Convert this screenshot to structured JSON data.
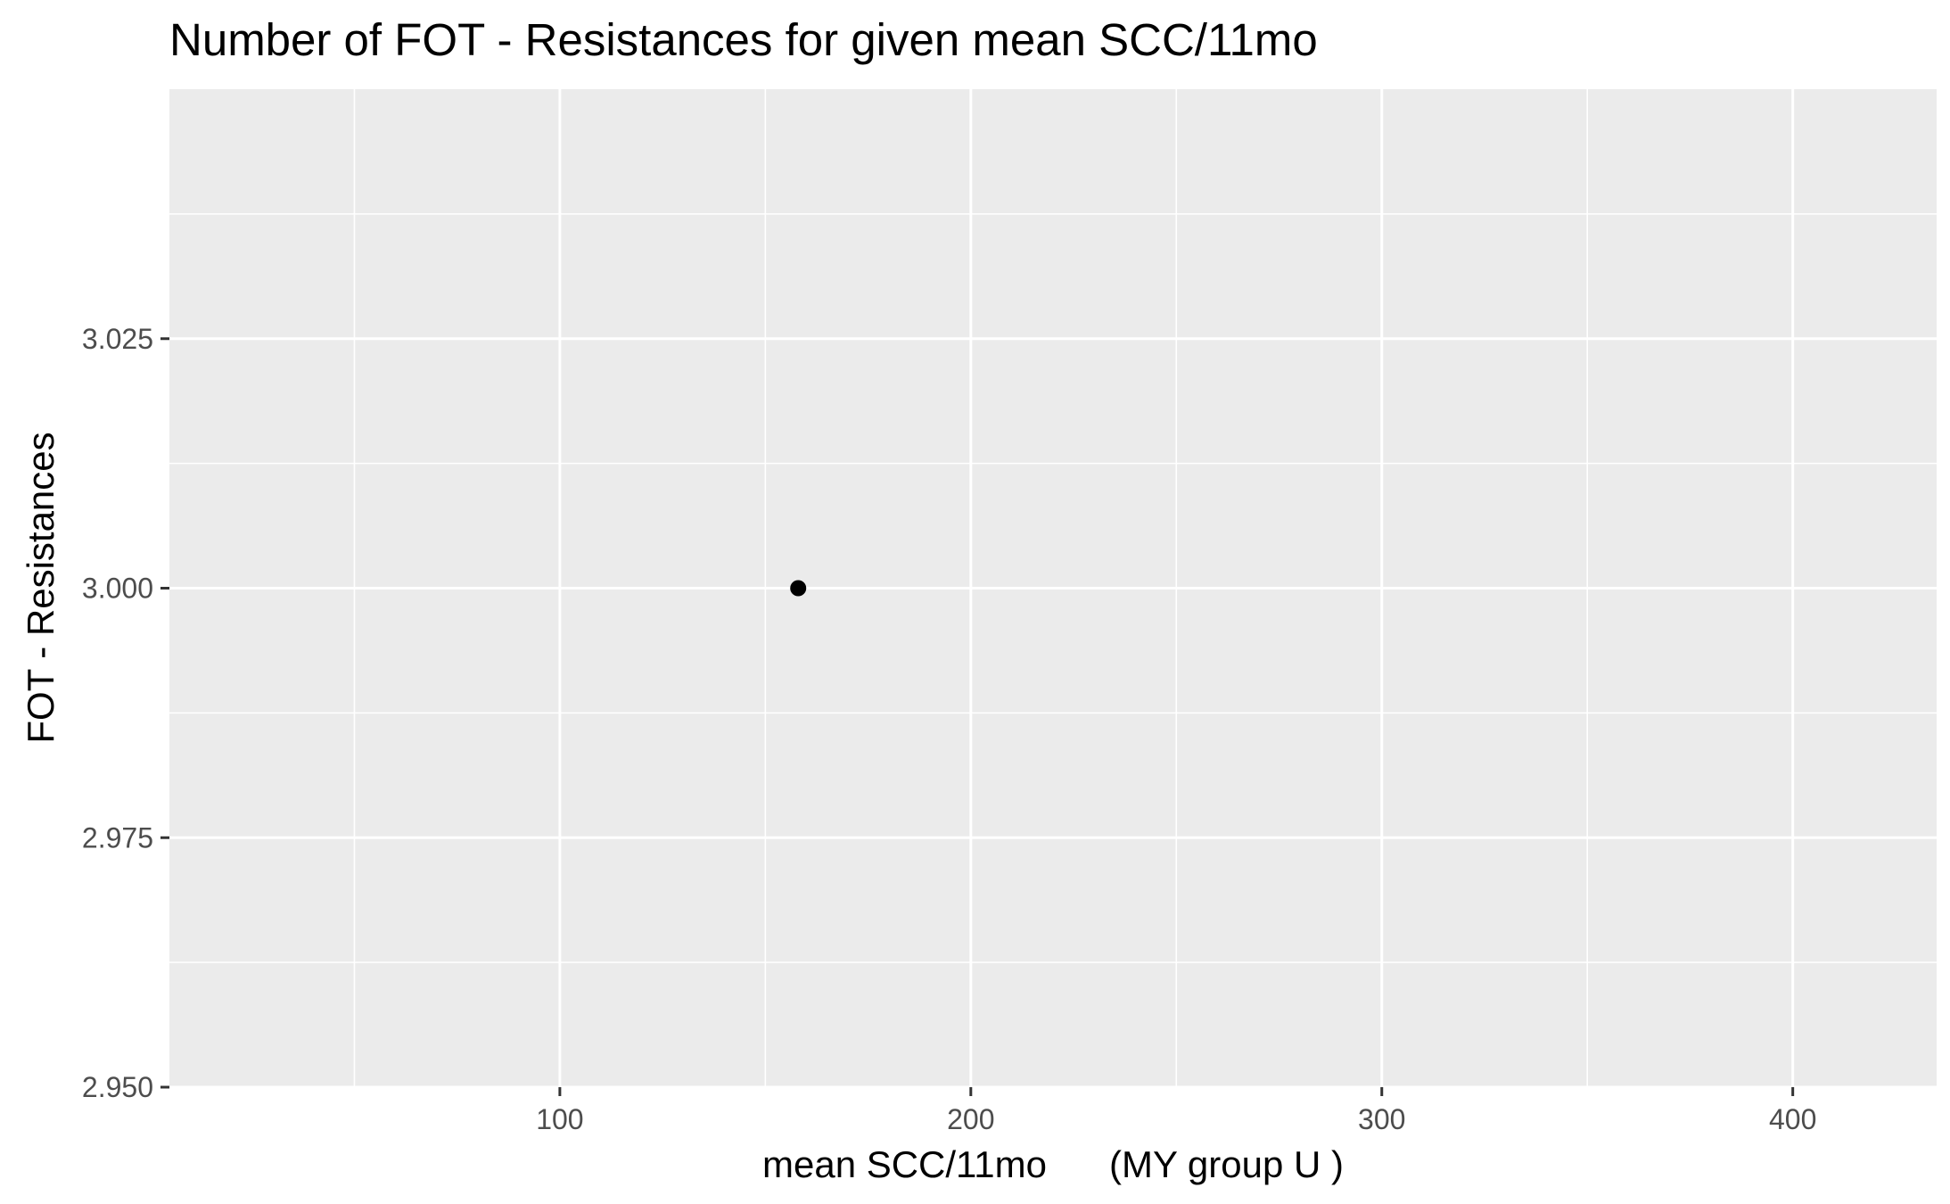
{
  "chart_data": {
    "type": "scatter",
    "title": "Number of FOT - Resistances for given mean SCC/11mo",
    "xlabel": "mean SCC/11mo      (MY group U )",
    "ylabel": "FOT - Resistances",
    "xlim": [
      5,
      435
    ],
    "ylim": [
      2.95,
      3.05
    ],
    "x_ticks": [
      100,
      200,
      300,
      400
    ],
    "x_tick_labels": [
      "100",
      "200",
      "300",
      "400"
    ],
    "x_minor_ticks": [
      50,
      150,
      250,
      350
    ],
    "y_ticks": [
      2.95,
      2.975,
      3.0,
      3.025
    ],
    "y_tick_labels": [
      "2.950",
      "2.975",
      "3.000",
      "3.025"
    ],
    "y_minor_ticks": [
      2.9625,
      2.9875,
      3.0125,
      3.0375
    ],
    "points": [
      {
        "x": 158,
        "y": 3.0
      }
    ],
    "grid": true,
    "colors": {
      "panel": "#ebebeb",
      "grid": "#ffffff",
      "point": "#000000",
      "tick": "#333333"
    }
  }
}
